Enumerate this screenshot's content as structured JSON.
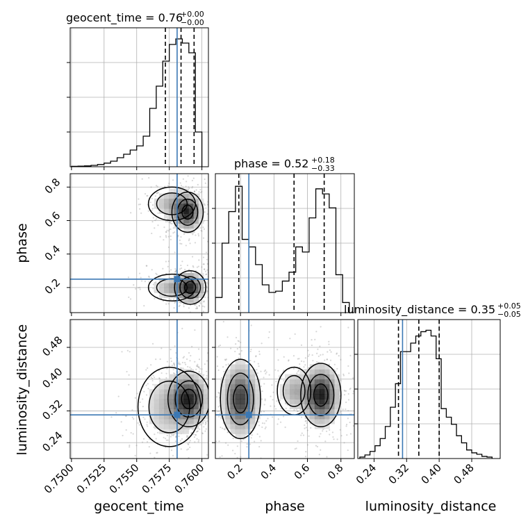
{
  "chart_data": {
    "type": "corner",
    "parameters": [
      "geocent_time",
      "phase",
      "luminosity_distance"
    ],
    "colors": {
      "truth": "#3b78b4",
      "hist": "#000000",
      "grid": "#b0b0b0",
      "points": "#8c8c8c"
    },
    "truths": {
      "geocent_time": 0.7581,
      "phase": 0.25,
      "luminosity_distance": 0.31
    },
    "titles": {
      "geocent_time": {
        "prefix": "geocent_time = ",
        "value": "0.76",
        "plus": "+0.00",
        "minus": "−0.00"
      },
      "phase": {
        "prefix": "phase = ",
        "value": "0.52",
        "plus": "+0.18",
        "minus": "−0.33"
      },
      "luminosity_distance": {
        "prefix": "luminosity_distance = ",
        "value": "0.35",
        "plus": "+0.05",
        "minus": "−0.05"
      }
    },
    "axes": {
      "geocent_time": {
        "range": [
          0.7499,
          0.7605
        ],
        "ticks": [
          0.75,
          0.7525,
          0.755,
          0.7575,
          0.76
        ],
        "tick_labels": [
          "0.7500",
          "0.7525",
          "0.7550",
          "0.7575",
          "0.7600"
        ],
        "label": "geocent_time"
      },
      "phase": {
        "range": [
          0.05,
          0.88
        ],
        "ticks": [
          0.2,
          0.4,
          0.6,
          0.8
        ],
        "tick_labels": [
          "0.2",
          "0.4",
          "0.6",
          "0.8"
        ],
        "label": "phase"
      },
      "luminosity_distance": {
        "range": [
          0.2,
          0.55
        ],
        "ticks": [
          0.24,
          0.32,
          0.4,
          0.48
        ],
        "tick_labels": [
          "0.24",
          "0.32",
          "0.40",
          "0.48"
        ],
        "label": "luminosity_distance"
      }
    },
    "histograms": {
      "geocent_time": {
        "edges": [
          0.75,
          0.7505,
          0.751,
          0.7515,
          0.752,
          0.7525,
          0.753,
          0.7535,
          0.754,
          0.7545,
          0.755,
          0.7555,
          0.756,
          0.7565,
          0.757,
          0.7575,
          0.758,
          0.7585,
          0.759,
          0.7595,
          0.76
        ],
        "counts": [
          0.3,
          0.4,
          0.6,
          1,
          1.6,
          2.6,
          4,
          6.5,
          9,
          12,
          15,
          22,
          42,
          58,
          76,
          88,
          92,
          89,
          82,
          25
        ],
        "quantiles": [
          0.7572,
          0.7584,
          0.7594
        ],
        "y_max": 100
      },
      "phase": {
        "edges": [
          0.05,
          0.09,
          0.13,
          0.17,
          0.21,
          0.25,
          0.29,
          0.33,
          0.37,
          0.41,
          0.45,
          0.49,
          0.53,
          0.57,
          0.61,
          0.65,
          0.69,
          0.73,
          0.77,
          0.81,
          0.85
        ],
        "counts": [
          12,
          55,
          80,
          100,
          58,
          52,
          38,
          22,
          16,
          17,
          25,
          32,
          52,
          48,
          75,
          98,
          94,
          83,
          30,
          8
        ],
        "quantiles": [
          0.19,
          0.52,
          0.7
        ],
        "y_max": 110
      },
      "luminosity_distance": {
        "edges": [
          0.205,
          0.2175,
          0.23,
          0.2425,
          0.255,
          0.2675,
          0.28,
          0.2925,
          0.305,
          0.3175,
          0.33,
          0.3425,
          0.355,
          0.3675,
          0.38,
          0.3925,
          0.405,
          0.4175,
          0.43,
          0.4425,
          0.455,
          0.4675,
          0.48,
          0.4925,
          0.505,
          0.5175,
          0.53
        ],
        "counts": [
          2,
          5,
          10,
          18,
          28,
          45,
          72,
          105,
          150,
          150,
          162,
          172,
          178,
          180,
          172,
          140,
          70,
          58,
          48,
          32,
          22,
          12,
          8,
          6,
          3,
          2
        ],
        "quantiles": [
          0.3,
          0.35,
          0.4
        ],
        "y_max": 195
      }
    },
    "densities": [
      {
        "x": "geocent_time",
        "y": "phase",
        "modes": [
          [
            0.7589,
            0.65,
            0.0006,
            0.06,
            1.0
          ],
          [
            0.7591,
            0.2,
            0.0006,
            0.05,
            1.0
          ],
          [
            0.7577,
            0.7,
            0.0009,
            0.05,
            0.4
          ],
          [
            0.7577,
            0.2,
            0.0009,
            0.04,
            0.4
          ]
        ]
      },
      {
        "x": "geocent_time",
        "y": "luminosity_distance",
        "modes": [
          [
            0.759,
            0.35,
            0.0008,
            0.035,
            1.0
          ],
          [
            0.7575,
            0.33,
            0.0012,
            0.05,
            0.35
          ]
        ]
      },
      {
        "x": "phase",
        "y": "luminosity_distance",
        "modes": [
          [
            0.68,
            0.36,
            0.06,
            0.04,
            1.0
          ],
          [
            0.2,
            0.35,
            0.06,
            0.05,
            0.85
          ],
          [
            0.52,
            0.37,
            0.05,
            0.03,
            0.35
          ]
        ]
      }
    ]
  }
}
